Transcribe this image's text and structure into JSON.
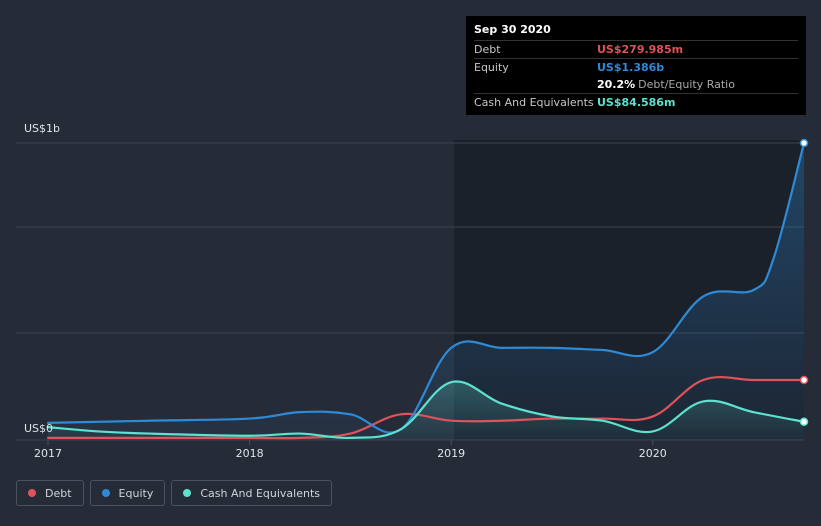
{
  "tooltip": {
    "date": "Sep 30 2020",
    "debt_label": "Debt",
    "debt_value": "US$279.985m",
    "equity_label": "Equity",
    "equity_value": "US$1.386b",
    "ratio_value": "20.2%",
    "ratio_label": "Debt/Equity Ratio",
    "cash_label": "Cash And Equivalents",
    "cash_value": "US$84.586m"
  },
  "colors": {
    "debt": "#e0525a",
    "equity": "#2f8ad6",
    "cash": "#5ee1cf"
  },
  "legend": [
    {
      "name": "Debt",
      "color": "#e0525a"
    },
    {
      "name": "Equity",
      "color": "#2f8ad6"
    },
    {
      "name": "Cash And Equivalents",
      "color": "#5ee1cf"
    }
  ],
  "chart_data": {
    "type": "line",
    "y_unit_labels": {
      "top": "US$1b",
      "bottom": "US$0"
    },
    "ylim": [
      0,
      1.386
    ],
    "xlim": [
      2017.0,
      2020.75
    ],
    "x_ticks": [
      "2017",
      "2018",
      "2019",
      "2020"
    ],
    "grid": true,
    "legend_position": "bottom-left",
    "series": [
      {
        "name": "Debt",
        "x": [
          2017.0,
          2017.5,
          2018.0,
          2018.25,
          2018.5,
          2018.75,
          2019.0,
          2019.25,
          2019.5,
          2019.75,
          2020.0,
          2020.25,
          2020.5,
          2020.75
        ],
        "y": [
          0.01,
          0.01,
          0.01,
          0.01,
          0.03,
          0.12,
          0.09,
          0.09,
          0.1,
          0.1,
          0.11,
          0.28,
          0.28,
          0.28
        ]
      },
      {
        "name": "Equity",
        "x": [
          2017.0,
          2017.5,
          2018.0,
          2018.25,
          2018.5,
          2018.75,
          2019.0,
          2019.25,
          2019.5,
          2019.75,
          2020.0,
          2020.25,
          2020.5,
          2020.6,
          2020.75
        ],
        "y": [
          0.08,
          0.09,
          0.1,
          0.13,
          0.12,
          0.05,
          0.43,
          0.43,
          0.43,
          0.42,
          0.41,
          0.67,
          0.7,
          0.85,
          1.386
        ]
      },
      {
        "name": "Cash And Equivalents",
        "x": [
          2017.0,
          2017.25,
          2017.5,
          2018.0,
          2018.25,
          2018.5,
          2018.75,
          2019.0,
          2019.25,
          2019.5,
          2019.75,
          2020.0,
          2020.25,
          2020.5,
          2020.75
        ],
        "y": [
          0.06,
          0.04,
          0.03,
          0.02,
          0.03,
          0.01,
          0.05,
          0.27,
          0.17,
          0.11,
          0.09,
          0.04,
          0.18,
          0.13,
          0.085
        ]
      }
    ]
  }
}
